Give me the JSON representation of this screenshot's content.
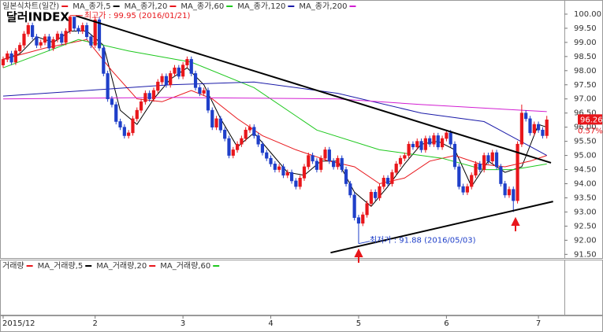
{
  "chart_data": {
    "type": "candlestick",
    "title": "달러INDEX",
    "name": "일본식차트(일간)",
    "up_color": "#e8161b",
    "down_color": "#1f3fc9",
    "open": [
      98.2,
      98.4,
      98.6,
      98.3,
      98.7,
      98.9,
      99.3,
      99.6,
      99.2,
      98.9,
      99.0,
      99.2,
      98.8,
      99.1,
      99.3,
      99.0,
      99.4,
      99.9,
      99.5,
      99.4,
      99.6,
      99.2,
      98.9,
      99.8,
      98.8,
      97.9,
      97.0,
      96.8,
      96.2,
      96.0,
      95.7,
      95.8,
      96.3,
      96.6,
      96.9,
      97.2,
      97.0,
      97.3,
      97.6,
      97.8,
      97.5,
      97.9,
      98.1,
      97.8,
      98.2,
      98.4,
      97.9,
      97.4,
      97.2,
      97.3,
      96.6,
      96.0,
      96.3,
      95.9,
      95.6,
      95.0,
      95.2,
      95.4,
      95.6,
      95.9,
      96.0,
      95.7,
      95.4,
      95.1,
      94.9,
      94.7,
      94.5,
      94.6,
      94.3,
      94.4,
      94.1,
      93.9,
      94.2,
      94.6,
      95.0,
      94.8,
      94.5,
      94.9,
      95.2,
      94.8,
      94.6,
      94.9,
      94.5,
      94.0,
      93.6,
      92.8,
      92.6,
      92.9,
      93.3,
      93.7,
      93.5,
      93.9,
      94.2,
      94.0,
      94.4,
      94.7,
      94.9,
      95.0,
      95.4,
      95.3,
      95.5,
      95.2,
      95.6,
      95.4,
      95.7,
      95.3,
      95.6,
      95.8,
      95.4,
      94.6,
      93.9,
      93.7,
      93.9,
      94.3,
      94.7,
      94.5,
      95.0,
      94.8,
      95.1,
      94.6,
      94.0,
      93.6,
      93.8,
      93.4,
      95.4,
      96.5,
      96.3,
      95.8,
      96.1,
      95.9,
      95.7
    ],
    "high": [
      98.5,
      98.7,
      98.7,
      98.8,
      99.0,
      99.4,
      99.7,
      99.7,
      99.3,
      99.1,
      99.3,
      99.3,
      99.2,
      99.4,
      99.4,
      99.5,
      99.95,
      99.9,
      99.6,
      99.7,
      99.7,
      99.3,
      99.9,
      99.9,
      98.9,
      98.0,
      97.1,
      96.9,
      96.3,
      96.1,
      95.9,
      96.4,
      96.7,
      97.0,
      97.3,
      97.3,
      97.4,
      97.7,
      97.9,
      97.9,
      98.0,
      98.2,
      98.2,
      98.3,
      98.5,
      98.5,
      98.0,
      97.5,
      97.4,
      97.4,
      96.7,
      96.4,
      96.4,
      96.0,
      95.7,
      95.3,
      95.5,
      95.7,
      96.0,
      96.1,
      96.1,
      95.8,
      95.5,
      95.2,
      95.0,
      94.8,
      94.7,
      94.7,
      94.5,
      94.5,
      94.2,
      94.3,
      94.7,
      95.1,
      95.1,
      94.9,
      95.0,
      95.3,
      95.3,
      94.9,
      95.0,
      95.0,
      94.6,
      94.1,
      93.7,
      92.9,
      93.0,
      93.4,
      93.8,
      93.8,
      94.0,
      94.3,
      94.3,
      94.5,
      94.8,
      95.0,
      95.1,
      95.5,
      95.5,
      95.6,
      95.6,
      95.7,
      95.7,
      95.8,
      95.8,
      95.7,
      95.9,
      95.9,
      95.5,
      94.7,
      94.0,
      94.0,
      94.4,
      94.8,
      94.8,
      95.1,
      95.1,
      95.2,
      95.2,
      94.7,
      94.1,
      93.9,
      93.9,
      95.5,
      96.8,
      96.6,
      96.4,
      96.2,
      96.2,
      96.0,
      96.4
    ],
    "low": [
      98.1,
      98.3,
      98.2,
      98.2,
      98.6,
      98.8,
      99.2,
      99.1,
      98.8,
      98.8,
      98.9,
      98.7,
      98.7,
      99.0,
      98.9,
      98.9,
      99.3,
      99.4,
      99.3,
      99.3,
      99.1,
      98.8,
      98.8,
      98.7,
      97.8,
      96.9,
      96.7,
      96.1,
      95.9,
      95.6,
      95.6,
      95.7,
      96.2,
      96.5,
      96.8,
      96.9,
      96.9,
      97.2,
      97.5,
      97.4,
      97.4,
      97.8,
      97.7,
      97.7,
      98.1,
      97.8,
      97.3,
      97.1,
      97.1,
      96.5,
      95.9,
      95.9,
      95.8,
      95.5,
      94.9,
      94.9,
      95.1,
      95.3,
      95.5,
      95.8,
      95.6,
      95.3,
      95.0,
      94.8,
      94.6,
      94.4,
      94.4,
      94.2,
      94.2,
      94.0,
      93.8,
      93.8,
      94.1,
      94.5,
      94.7,
      94.4,
      94.4,
      94.8,
      94.7,
      94.5,
      94.5,
      94.4,
      93.9,
      93.5,
      92.7,
      91.88,
      92.5,
      92.8,
      93.2,
      93.4,
      93.4,
      93.8,
      93.9,
      93.9,
      94.3,
      94.6,
      94.8,
      94.9,
      95.2,
      95.2,
      95.1,
      95.1,
      95.3,
      95.3,
      95.2,
      95.2,
      95.5,
      95.3,
      94.5,
      93.8,
      93.6,
      93.6,
      93.8,
      94.2,
      94.4,
      94.4,
      94.7,
      94.7,
      94.5,
      93.9,
      93.5,
      93.5,
      93.0,
      93.3,
      95.3,
      96.2,
      95.7,
      95.7,
      95.8,
      95.6,
      95.6
    ],
    "close": [
      98.4,
      98.6,
      98.3,
      98.7,
      98.9,
      99.3,
      99.6,
      99.2,
      98.9,
      99.0,
      99.2,
      98.8,
      99.1,
      99.3,
      99.0,
      99.4,
      99.9,
      99.5,
      99.4,
      99.6,
      99.2,
      98.9,
      99.8,
      98.8,
      97.9,
      97.0,
      96.8,
      96.2,
      96.0,
      95.7,
      95.8,
      96.3,
      96.6,
      96.9,
      97.2,
      97.0,
      97.3,
      97.6,
      97.8,
      97.5,
      97.9,
      98.1,
      97.8,
      98.2,
      98.4,
      97.9,
      97.4,
      97.2,
      97.3,
      96.6,
      96.0,
      96.3,
      95.9,
      95.6,
      95.0,
      95.2,
      95.4,
      95.6,
      95.9,
      96.0,
      95.7,
      95.4,
      95.1,
      94.9,
      94.7,
      94.5,
      94.6,
      94.3,
      94.4,
      94.1,
      93.9,
      94.2,
      94.6,
      95.0,
      94.8,
      94.5,
      94.9,
      95.2,
      94.8,
      94.6,
      94.9,
      94.5,
      94.0,
      93.6,
      92.8,
      92.6,
      92.9,
      93.3,
      93.7,
      93.5,
      93.9,
      94.2,
      94.0,
      94.4,
      94.7,
      94.9,
      95.0,
      95.4,
      95.3,
      95.5,
      95.2,
      95.6,
      95.4,
      95.7,
      95.3,
      95.6,
      95.8,
      95.4,
      94.6,
      93.9,
      93.7,
      93.9,
      94.3,
      94.7,
      94.5,
      95.0,
      94.8,
      95.1,
      94.6,
      94.0,
      93.6,
      93.8,
      93.4,
      95.4,
      96.5,
      96.3,
      95.8,
      96.1,
      95.9,
      95.7,
      96.26
    ],
    "series": [
      {
        "name": "MA_종가,5",
        "color": "#000000",
        "x": [
          0,
          4,
          8,
          12,
          16,
          20,
          24,
          28,
          32,
          36,
          40,
          44,
          48,
          52,
          56,
          60,
          64,
          68,
          72,
          76,
          80,
          84,
          88,
          92,
          96,
          100,
          104,
          108,
          112,
          116,
          120,
          124,
          128,
          130
        ],
        "values": [
          98.4,
          98.6,
          99.2,
          99.0,
          99.4,
          99.4,
          98.9,
          96.6,
          96.1,
          97.0,
          97.7,
          98.1,
          97.5,
          96.3,
          95.3,
          95.8,
          95.1,
          94.4,
          94.3,
          94.8,
          94.8,
          93.7,
          93.2,
          93.9,
          94.7,
          95.4,
          95.5,
          95.2,
          93.9,
          94.8,
          94.4,
          94.6,
          96.1,
          96.0
        ]
      },
      {
        "name": "MA_종가,20",
        "color": "#e8161b",
        "x": [
          0,
          10,
          20,
          26,
          32,
          38,
          45,
          50,
          56,
          62,
          70,
          78,
          84,
          90,
          96,
          102,
          108,
          114,
          120,
          126,
          130
        ],
        "values": [
          98.4,
          98.8,
          99.1,
          98.0,
          97.0,
          96.9,
          97.3,
          97.0,
          96.3,
          95.7,
          95.2,
          94.8,
          94.6,
          94.0,
          94.2,
          94.8,
          95.0,
          94.7,
          94.6,
          94.8,
          95.0
        ]
      },
      {
        "name": "MA_종가,60",
        "color": "#1ec81e",
        "x": [
          0,
          18,
          30,
          45,
          60,
          75,
          90,
          105,
          115,
          122,
          130
        ],
        "values": [
          98.1,
          99.1,
          98.7,
          98.3,
          97.4,
          95.9,
          95.2,
          94.9,
          94.5,
          94.5,
          94.7
        ]
      },
      {
        "name": "MA_종가,120",
        "color": "#1a1aa8",
        "x": [
          0,
          20,
          40,
          60,
          80,
          100,
          115,
          130
        ],
        "values": [
          97.1,
          97.3,
          97.5,
          97.6,
          97.2,
          96.5,
          96.2,
          95.0
        ]
      },
      {
        "name": "MA_종가,200",
        "color": "#d21ed2",
        "x": [
          0,
          40,
          80,
          100,
          130
        ],
        "values": [
          97.0,
          97.05,
          97.0,
          96.8,
          96.55
        ]
      }
    ],
    "trendlines": [
      {
        "x": [
          17.4,
          131
        ],
        "values": [
          99.94,
          94.74
        ]
      },
      {
        "x": [
          78.3,
          131.5
        ],
        "values": [
          91.56,
          93.37
        ]
      }
    ],
    "annotations": [
      {
        "text": "최고가 : 99.95 (2016/01/21)",
        "color": "#e8161b"
      },
      {
        "text": "최저가 : 91.88 (2016/05/03)",
        "color": "#1f3fc9"
      }
    ],
    "current": {
      "label": "96.26",
      "change": "0.57%"
    },
    "xlim": [
      -0.75,
      134.2
    ],
    "ylim": [
      91.37,
      100.5
    ],
    "yticks": [
      {
        "value": 100,
        "label": "100.00"
      },
      {
        "value": 99.5,
        "label": "99.50"
      },
      {
        "value": 99,
        "label": "99.00"
      },
      {
        "value": 98.5,
        "label": "98.50"
      },
      {
        "value": 98,
        "label": "98.00"
      },
      {
        "value": 97.5,
        "label": "97.50"
      },
      {
        "value": 97,
        "label": "97.00"
      },
      {
        "value": 96.5,
        "label": "96.50"
      },
      {
        "value": 96,
        "label": "96.00"
      },
      {
        "value": 95.5,
        "label": "95.50"
      },
      {
        "value": 95,
        "label": "95.00"
      },
      {
        "value": 94.5,
        "label": "94.50"
      },
      {
        "value": 94,
        "label": "94.00"
      },
      {
        "value": 93.5,
        "label": "93.50"
      },
      {
        "value": 93,
        "label": "93.00"
      },
      {
        "value": 92.5,
        "label": "92.50"
      },
      {
        "value": 92,
        "label": "92.00"
      },
      {
        "value": 91.5,
        "label": "91.50"
      }
    ],
    "xticks": [
      {
        "value": 0,
        "label": "2015/12"
      },
      {
        "value": 22,
        "label": "2"
      },
      {
        "value": 43,
        "label": "3"
      },
      {
        "value": 64,
        "label": "4"
      },
      {
        "value": 85,
        "label": "5"
      },
      {
        "value": 106,
        "label": "6"
      },
      {
        "value": 128,
        "label": "7"
      }
    ],
    "volume_panel": {
      "title": "거래량",
      "color": "#e8161b",
      "legend": [
        {
          "name": "MA_거래량,5",
          "color": "#000000"
        },
        {
          "name": "MA_거래량,20",
          "color": "#e8161b"
        },
        {
          "name": "MA_거래량,60",
          "color": "#1ec81e"
        }
      ]
    }
  }
}
